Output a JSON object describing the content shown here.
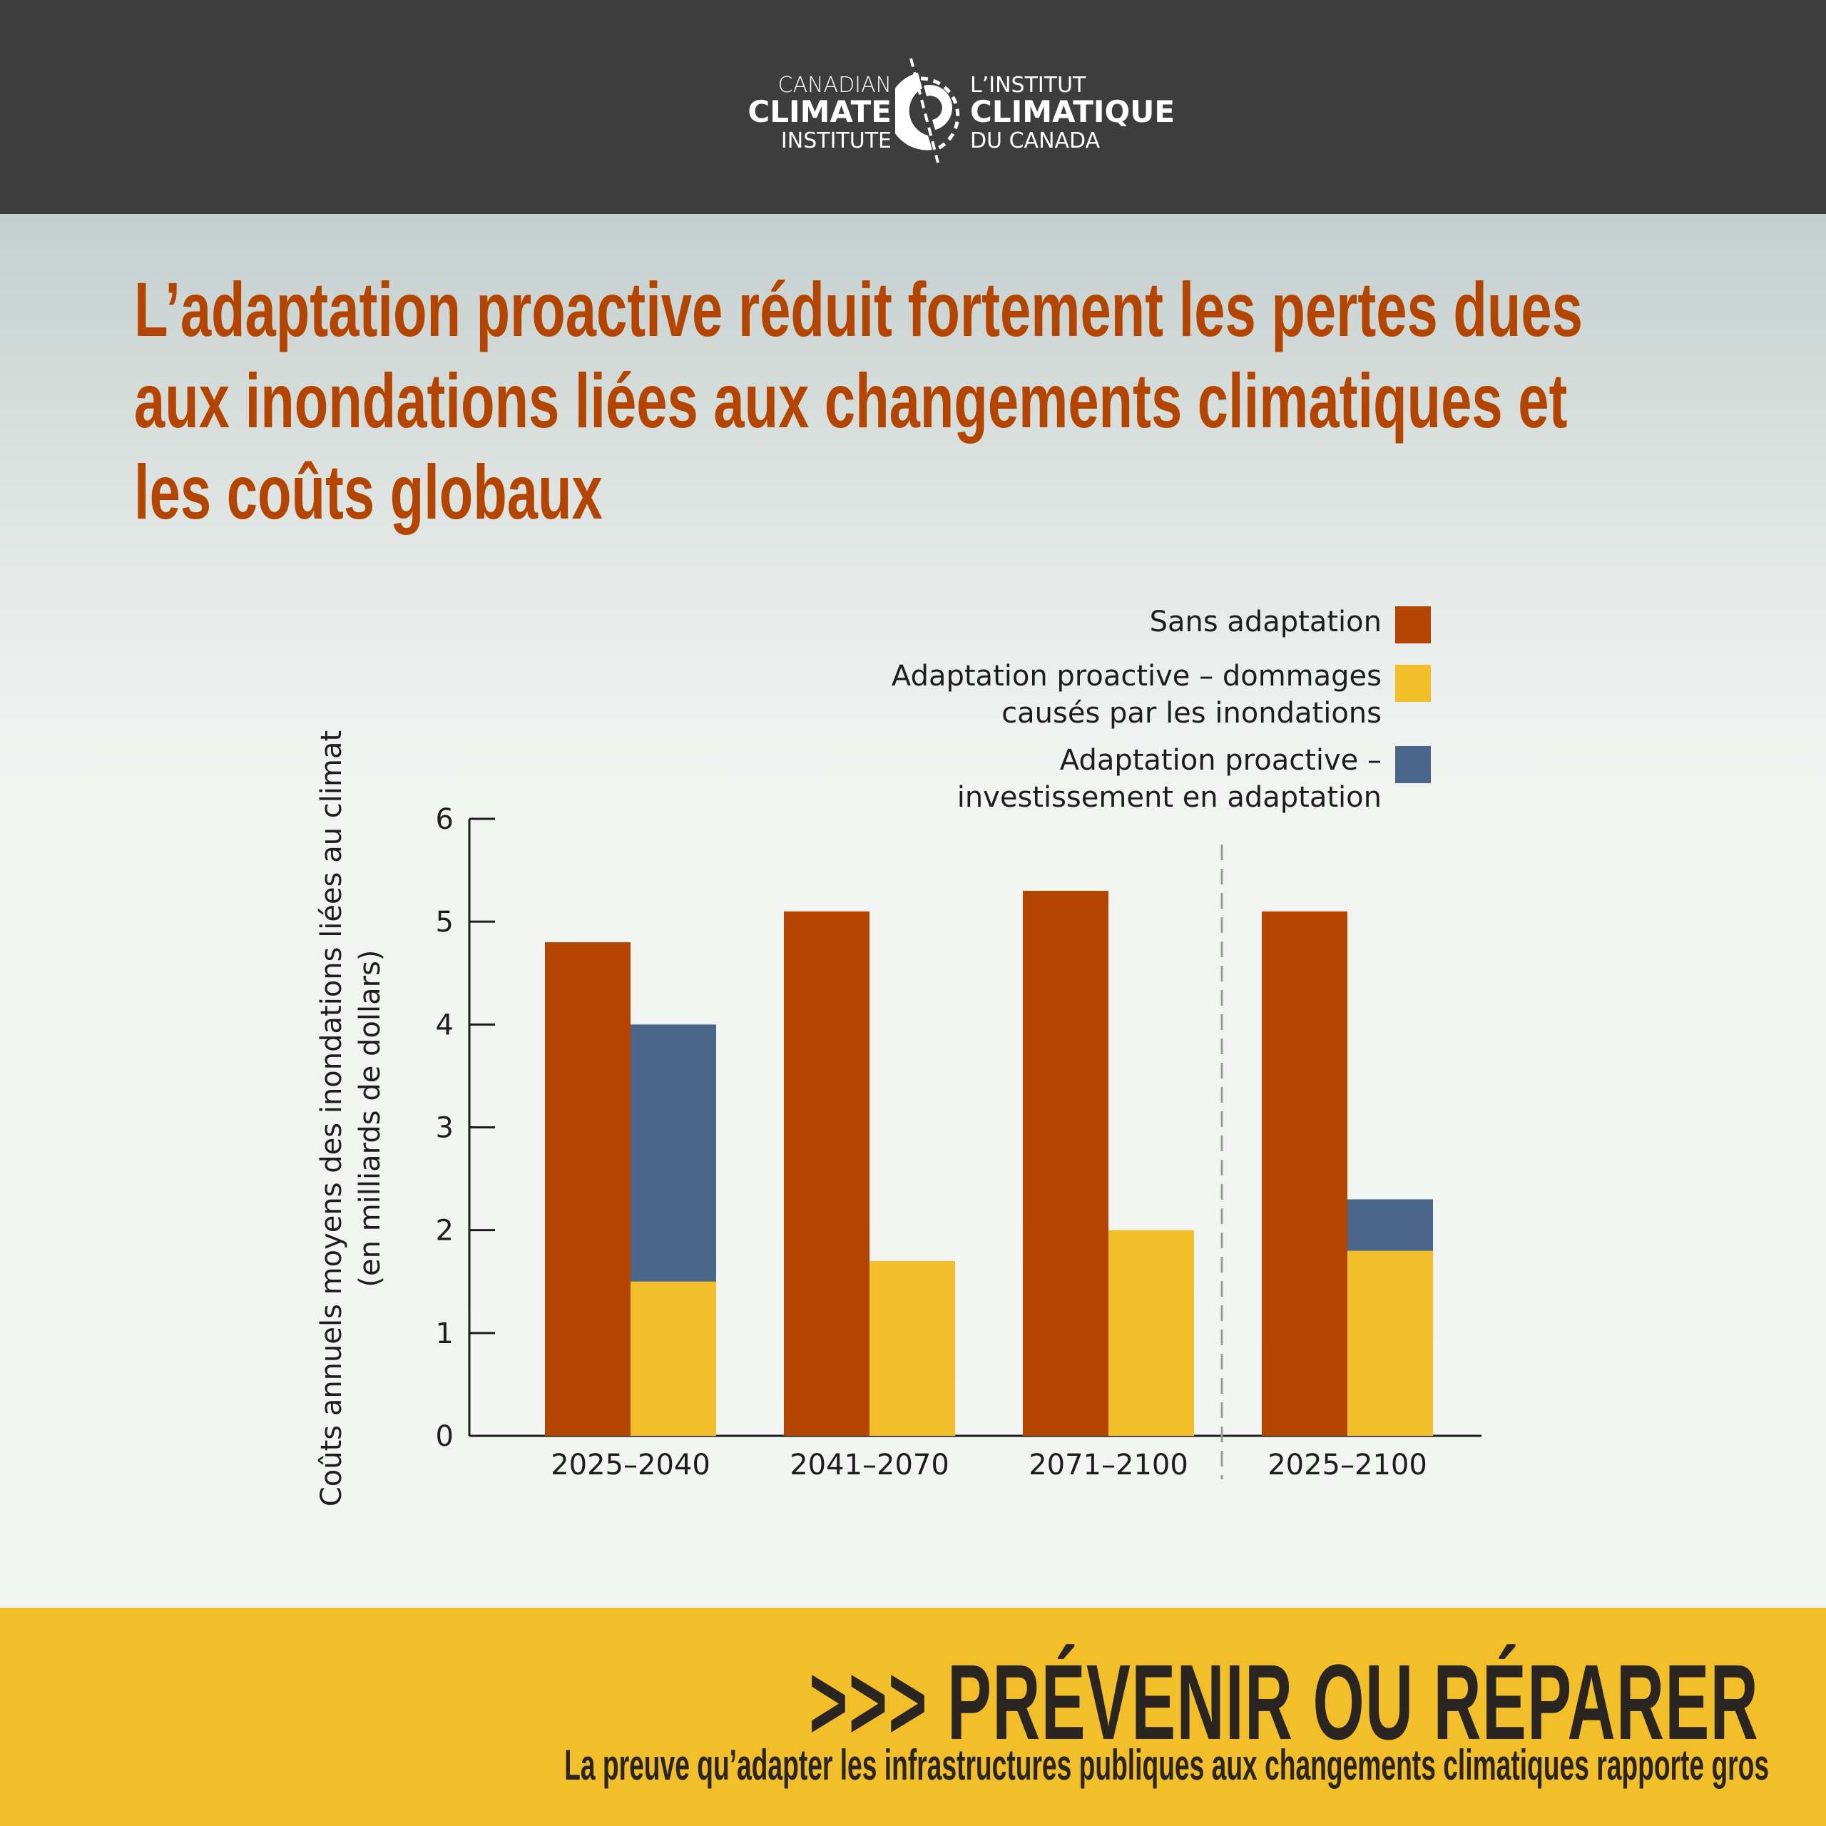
{
  "logo": {
    "en_line1": "CANADIAN",
    "en_line2": "CLIMATE",
    "en_line3": "INSTITUTE",
    "fr_line1": "L’INSTITUT",
    "fr_line2": "CLIMATIQUE",
    "fr_line3": "DU CANADA"
  },
  "title_lines": [
    "L’adaptation proactive réduit fortement les pertes dues",
    "aux inondations liées aux changements climatiques et",
    "les coûts globaux"
  ],
  "chart_data": {
    "type": "bar",
    "categories": [
      "2025–2040",
      "2041–2070",
      "2071–2100",
      "2025–2100"
    ],
    "series": [
      {
        "name": "Sans adaptation",
        "color": "#b34500",
        "values": [
          4.8,
          5.1,
          5.3,
          5.1
        ]
      },
      {
        "name": "Adaptation proactive – dommages causés par les inondations",
        "color": "#f2be2a",
        "values": [
          1.5,
          1.7,
          2.0,
          1.8
        ],
        "stack": "adapt"
      },
      {
        "name": "Adaptation proactive – investissement en adaptation",
        "color": "#4a678b",
        "values": [
          2.5,
          0,
          0,
          0.5
        ],
        "stack": "adapt"
      }
    ],
    "legend": [
      [
        "Sans adaptation"
      ],
      [
        "Adaptation proactive – dommages",
        "causés par les inondations"
      ],
      [
        "Adaptation proactive –",
        "investissement en adaptation"
      ]
    ],
    "ylabel_lines": [
      "Coûts annuels moyens des inondations liées au climat",
      "(en milliards de dollars)"
    ],
    "yticks": [
      "0",
      "1",
      "2",
      "3",
      "4",
      "5",
      "6"
    ],
    "ylim": [
      0,
      6
    ],
    "separator_before_category": 3,
    "legend_placement": "top-right"
  },
  "footer": {
    "arrows": ">>>",
    "headline": "PRÉVENIR OU RÉPARER",
    "subtitle": "La preuve qu’adapter les infrastructures publiques aux changements climatiques rapporte gros"
  }
}
